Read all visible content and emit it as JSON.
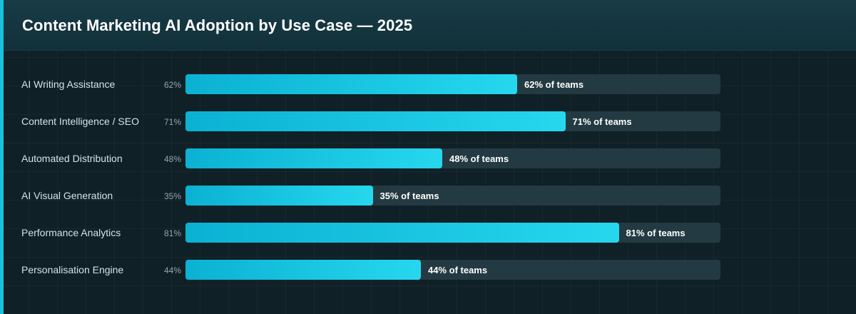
{
  "chart_data": {
    "type": "bar",
    "orientation": "horizontal",
    "title": "Content Marketing AI Adoption by Use Case — 2025",
    "categories": [
      "AI Writing Assistance",
      "Content Intelligence / SEO",
      "Automated Distribution",
      "AI Visual Generation",
      "Performance Analytics",
      "Personalisation Engine"
    ],
    "values": [
      62,
      71,
      48,
      35,
      81,
      44
    ],
    "unit": "%",
    "value_label_suffix": "% of teams",
    "xlim": [
      0,
      100
    ],
    "colors": {
      "bar_start": "#0bb1d2",
      "bar_end": "#26d7ee",
      "track": "#233a42",
      "accent": "#17c3dc"
    }
  }
}
